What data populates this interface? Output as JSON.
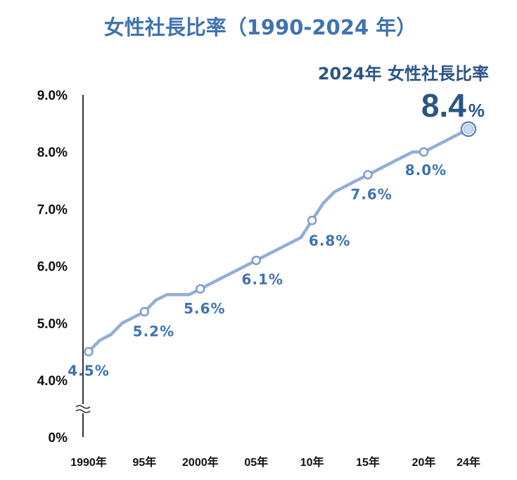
{
  "chart_data": {
    "type": "line",
    "title": "女性社長比率（1990-2024 年）",
    "x": [
      1990,
      1991,
      1992,
      1993,
      1994,
      1995,
      1996,
      1997,
      1998,
      1999,
      2000,
      2001,
      2002,
      2003,
      2004,
      2005,
      2006,
      2007,
      2008,
      2009,
      2010,
      2011,
      2012,
      2013,
      2014,
      2015,
      2016,
      2017,
      2018,
      2019,
      2020,
      2021,
      2022,
      2023,
      2024
    ],
    "y": [
      4.5,
      4.7,
      4.8,
      5.0,
      5.1,
      5.2,
      5.4,
      5.5,
      5.5,
      5.5,
      5.6,
      5.7,
      5.8,
      5.9,
      6.0,
      6.1,
      6.2,
      6.3,
      6.4,
      6.5,
      6.8,
      7.1,
      7.3,
      7.4,
      7.5,
      7.6,
      7.7,
      7.8,
      7.9,
      8.0,
      8.0,
      8.1,
      8.2,
      8.3,
      8.4
    ],
    "markers": [
      {
        "x": 1990,
        "y": 4.5,
        "label": "4.5%"
      },
      {
        "x": 1995,
        "y": 5.2,
        "label": "5.2%"
      },
      {
        "x": 2000,
        "y": 5.6,
        "label": "5.6%"
      },
      {
        "x": 2005,
        "y": 6.1,
        "label": "6.1%"
      },
      {
        "x": 2010,
        "y": 6.8,
        "label": "6.8%"
      },
      {
        "x": 2015,
        "y": 7.6,
        "label": "7.6%"
      },
      {
        "x": 2020,
        "y": 8.0,
        "label": "8.0%"
      }
    ],
    "highlight": {
      "x": 2024,
      "y": 8.4,
      "title": "2024年 女性社長比率",
      "value": "8.4",
      "unit": "%"
    },
    "y_ticks": [
      {
        "value": 0,
        "label": "0%"
      },
      {
        "value": 4.0,
        "label": "4.0%"
      },
      {
        "value": 5.0,
        "label": "5.0%"
      },
      {
        "value": 6.0,
        "label": "6.0%"
      },
      {
        "value": 7.0,
        "label": "7.0%"
      },
      {
        "value": 8.0,
        "label": "8.0%"
      },
      {
        "value": 9.0,
        "label": "9.0%"
      }
    ],
    "x_ticks": [
      {
        "value": 1990,
        "label": "1990年"
      },
      {
        "value": 1995,
        "label": "95年"
      },
      {
        "value": 2000,
        "label": "2000年"
      },
      {
        "value": 2005,
        "label": "05年"
      },
      {
        "value": 2010,
        "label": "10年"
      },
      {
        "value": 2015,
        "label": "15年"
      },
      {
        "value": 2020,
        "label": "20年"
      },
      {
        "value": 2024,
        "label": "24年"
      }
    ],
    "xlabel": "",
    "ylabel": "",
    "ylim": [
      4.0,
      9.0
    ],
    "axis_break": true,
    "grid": false,
    "colors": {
      "line": "#92aed8",
      "marker_fill": "#ffffff",
      "marker_stroke": "#7f9ccc",
      "title": "#3f73b1",
      "label": "#3e72b0",
      "highlight_text": "#2b5585",
      "highlight_dot": "#c9dcf2"
    }
  }
}
